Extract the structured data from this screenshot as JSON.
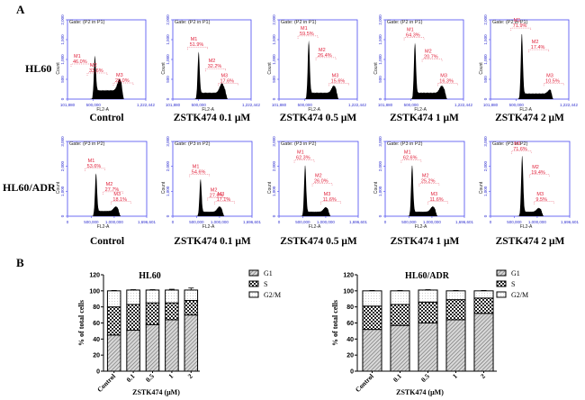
{
  "panel_labels": {
    "a": "A",
    "b": "B"
  },
  "panel_a": {
    "rows": [
      {
        "label": "HL60",
        "gate": "Gate: (P2 in P1)",
        "x_ticks": [
          "101,880",
          "500,000",
          "1,222,442"
        ],
        "y_ticks": [
          "0",
          "500",
          "1,000",
          "1,500",
          "2,000"
        ],
        "y_label": "Count",
        "x_label": "FL2-A",
        "plots": [
          {
            "caption": "Control",
            "m1": "46.0%",
            "m2": "33.6%",
            "m3": "20.0%"
          },
          {
            "caption": "ZSTK474 0.1 μM",
            "m1": "51.9%",
            "m2": "32.2%",
            "m3": "17.6%"
          },
          {
            "caption": "ZSTK474 0.5 μM",
            "m1": "59.5%",
            "m2": "26.4%",
            "m3": "15.6%"
          },
          {
            "caption": "ZSTK474 1 μM",
            "m1": "64.3%",
            "m2": "20.7%",
            "m3": "16.3%"
          },
          {
            "caption": "ZSTK474 2 μM",
            "m1": "71.9%",
            "m2": "17.4%",
            "m3": "10.5%"
          }
        ]
      },
      {
        "label": "HL60/ADR",
        "gate": "Gate: (P3 in P2)",
        "x_ticks": [
          "0",
          "500,000",
          "1,000,000",
          "1,696,601"
        ],
        "y_ticks": [
          "0",
          "1,000",
          "2,000",
          "3,000"
        ],
        "y_label": "Count",
        "x_label": "FL2-A",
        "plots": [
          {
            "caption": "Control",
            "m1": "53.6%",
            "m2": "27.7%",
            "m3": "18.1%"
          },
          {
            "caption": "ZSTK474 0.1 μM",
            "m1": "54.6%",
            "m2": "27.6%",
            "m3": "17.1%"
          },
          {
            "caption": "ZSTK474 0.5 μM",
            "m1": "62.3%",
            "m2": "26.0%",
            "m3": "11.6%"
          },
          {
            "caption": "ZSTK474 1 μM",
            "m1": "62.6%",
            "m2": "25.2%",
            "m3": "11.6%"
          },
          {
            "caption": "ZSTK474 2 μM",
            "m1": "71.6%",
            "m2": "19.4%",
            "m3": "9.5%"
          }
        ]
      }
    ]
  },
  "chart_data": [
    {
      "type": "bar",
      "stacked": true,
      "title": "HL60",
      "xlabel": "ZSTK474 (μM)",
      "ylabel": "% of total cells",
      "ylim": [
        0,
        120
      ],
      "y_ticks": [
        "0",
        "20",
        "40",
        "60",
        "80",
        "100",
        "120"
      ],
      "categories": [
        "Control",
        "0.1",
        "0.5",
        "1",
        "2"
      ],
      "series": [
        {
          "name": "G1",
          "values": [
            45,
            51,
            58,
            64,
            70
          ],
          "errors": [
            1.5,
            1.5,
            1.5,
            1.5,
            2
          ]
        },
        {
          "name": "S",
          "values": [
            35,
            32,
            27,
            21,
            18
          ],
          "errors": [
            1,
            1,
            1,
            1,
            1.5
          ]
        },
        {
          "name": "G2/M",
          "values": [
            20,
            18,
            16,
            16,
            13
          ],
          "errors": [
            0.5,
            0.5,
            0.5,
            1,
            2.5
          ]
        }
      ],
      "legend": "right"
    },
    {
      "type": "bar",
      "stacked": true,
      "title": "HL60/ADR",
      "xlabel": "ZSTK474 (μM)",
      "ylabel": "% of total cells",
      "ylim": [
        0,
        120
      ],
      "y_ticks": [
        "0",
        "20",
        "40",
        "60",
        "80",
        "100",
        "120"
      ],
      "categories": [
        "Control",
        "0.1",
        "0.5",
        "1",
        "2"
      ],
      "series": [
        {
          "name": "G1",
          "values": [
            52,
            57,
            60,
            64,
            72
          ],
          "errors": [
            1.5,
            2,
            1.5,
            1.5,
            1.5
          ]
        },
        {
          "name": "S",
          "values": [
            29,
            26,
            26,
            25,
            19
          ],
          "errors": [
            1,
            2,
            1,
            1,
            1
          ]
        },
        {
          "name": "G2/M",
          "values": [
            19,
            17,
            15,
            11,
            9
          ],
          "errors": [
            0.5,
            0.5,
            0.5,
            0.5,
            0.5
          ]
        }
      ],
      "legend": "right"
    }
  ]
}
